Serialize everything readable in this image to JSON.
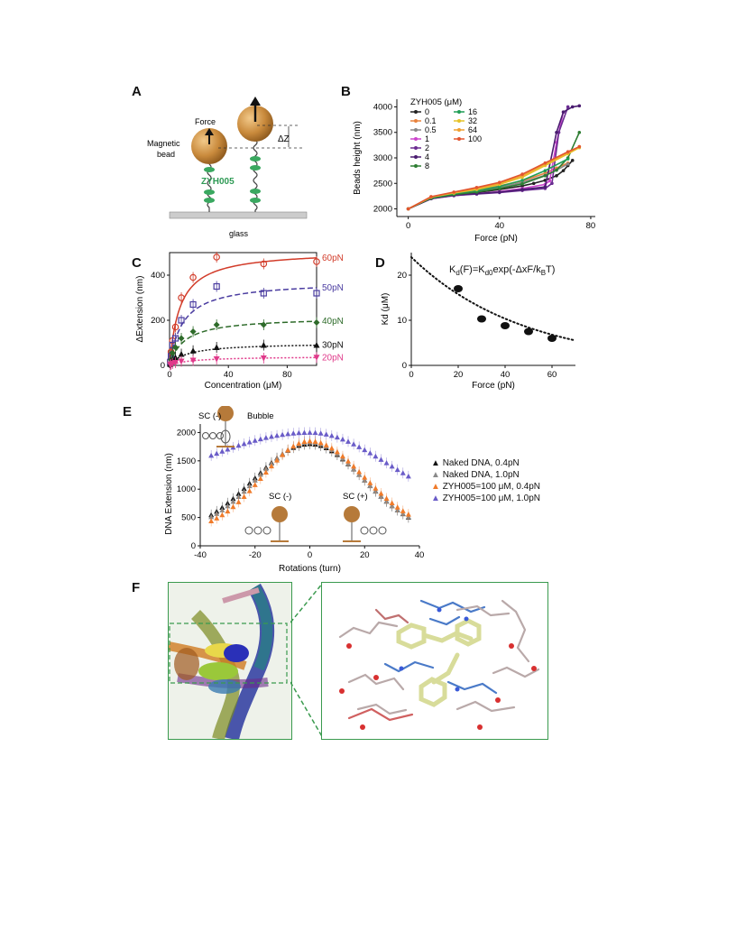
{
  "panels": {
    "A": {
      "letter": "A",
      "force_label": "Force",
      "bead_label_1": "Magnetic",
      "bead_label_2": "bead",
      "dz_label": "ΔZ",
      "compound_label": "ZYH005",
      "glass_label": "glass"
    },
    "B": {
      "letter": "B"
    },
    "C": {
      "letter": "C"
    },
    "D": {
      "letter": "D",
      "equation": "K_d(F)=K_d0 exp(-ΔxF/k_BT)"
    },
    "E": {
      "letter": "E",
      "sc_neg_top": "SC (-)",
      "bubble": "Bubble",
      "sc_neg": "SC (-)",
      "sc_pos": "SC (+)"
    },
    "F": {
      "letter": "F"
    }
  },
  "chart_data": [
    {
      "panel": "B",
      "type": "line",
      "xlabel": "Force (pN)",
      "ylabel": "Beads height (nm)",
      "xlim": [
        -5,
        82
      ],
      "ylim": [
        1850,
        4150
      ],
      "xticks": [
        "0",
        "40",
        "80"
      ],
      "yticks": [
        "2000",
        "2500",
        "3000",
        "3500",
        "4000"
      ],
      "legend_title": "ZYH005 (μM)",
      "legend_position": "top-left",
      "series": [
        {
          "name": "0",
          "color": "#222222",
          "x": [
            0,
            10,
            20,
            30,
            40,
            50,
            55,
            60,
            65,
            68,
            70,
            72
          ],
          "y": [
            2000,
            2200,
            2280,
            2320,
            2380,
            2450,
            2500,
            2560,
            2650,
            2750,
            2850,
            2950
          ]
        },
        {
          "name": "0.1",
          "color": "#e8823c",
          "x": [
            0,
            10,
            20,
            30,
            40,
            50,
            60,
            65,
            70
          ],
          "y": [
            2000,
            2220,
            2300,
            2360,
            2450,
            2550,
            2700,
            2800,
            2900
          ]
        },
        {
          "name": "0.5",
          "color": "#888888",
          "x": [
            0,
            10,
            20,
            30,
            40,
            50,
            60,
            65,
            70
          ],
          "y": [
            2000,
            2210,
            2290,
            2340,
            2420,
            2520,
            2660,
            2760,
            2880
          ]
        },
        {
          "name": "1",
          "color": "#cc44cc",
          "x": [
            0,
            10,
            20,
            30,
            40,
            50,
            60,
            62,
            65,
            68
          ],
          "y": [
            2000,
            2200,
            2260,
            2300,
            2340,
            2400,
            2480,
            2550,
            3300,
            3900
          ]
        },
        {
          "name": "2",
          "color": "#6a2c91",
          "x": [
            0,
            10,
            20,
            30,
            40,
            50,
            60,
            63,
            66,
            70
          ],
          "y": [
            2000,
            2200,
            2260,
            2290,
            2320,
            2360,
            2400,
            2500,
            3500,
            4000
          ]
        },
        {
          "name": "4",
          "color": "#4a1c70",
          "x": [
            0,
            10,
            20,
            30,
            40,
            50,
            60,
            65,
            68,
            72,
            75
          ],
          "y": [
            2000,
            2200,
            2270,
            2300,
            2330,
            2380,
            2430,
            3500,
            3900,
            4000,
            4020
          ]
        },
        {
          "name": "8",
          "color": "#2e7d32",
          "x": [
            0,
            10,
            20,
            30,
            40,
            50,
            60,
            65,
            70,
            75
          ],
          "y": [
            2000,
            2210,
            2280,
            2330,
            2400,
            2490,
            2650,
            2760,
            3000,
            3500
          ]
        },
        {
          "name": "16",
          "color": "#1f9d55",
          "x": [
            0,
            10,
            20,
            30,
            40,
            50,
            60,
            70
          ],
          "y": [
            2000,
            2220,
            2300,
            2360,
            2440,
            2560,
            2750,
            2980
          ]
        },
        {
          "name": "32",
          "color": "#e6c229",
          "x": [
            0,
            10,
            20,
            30,
            40,
            50,
            60,
            70,
            75
          ],
          "y": [
            2000,
            2230,
            2310,
            2380,
            2480,
            2620,
            2850,
            3080,
            3200
          ]
        },
        {
          "name": "64",
          "color": "#f0a030",
          "x": [
            0,
            10,
            20,
            30,
            40,
            50,
            60,
            70,
            75
          ],
          "y": [
            2000,
            2230,
            2320,
            2400,
            2500,
            2650,
            2880,
            3100,
            3220
          ]
        },
        {
          "name": "100",
          "color": "#e2552f",
          "x": [
            0,
            10,
            20,
            30,
            40,
            50,
            60,
            70,
            75
          ],
          "y": [
            2000,
            2240,
            2330,
            2420,
            2520,
            2680,
            2900,
            3120,
            3220
          ]
        }
      ]
    },
    {
      "panel": "C",
      "type": "scatter",
      "xlabel": "Concentration (μM)",
      "ylabel": "ΔExtension (nm)",
      "xlim": [
        0,
        100
      ],
      "ylim": [
        0,
        500
      ],
      "xticks": [
        "0",
        "40",
        "80"
      ],
      "yticks": [
        "0",
        "200",
        "400"
      ],
      "series": [
        {
          "name": "60pN",
          "color": "#d23c2a",
          "marker": "circle-open",
          "line": "solid",
          "x": [
            0.5,
            1,
            2,
            4,
            8,
            16,
            32,
            64,
            100
          ],
          "y": [
            20,
            60,
            110,
            170,
            300,
            390,
            480,
            450,
            460
          ],
          "fit": {
            "max": 510,
            "kd": 7
          }
        },
        {
          "name": "50pN",
          "color": "#4a3ca0",
          "marker": "square-open",
          "line": "dashed",
          "x": [
            0.5,
            1,
            2,
            4,
            8,
            16,
            32,
            64,
            100
          ],
          "y": [
            15,
            40,
            90,
            120,
            200,
            270,
            350,
            320,
            320
          ],
          "fit": {
            "max": 375,
            "kd": 9
          }
        },
        {
          "name": "40pN",
          "color": "#2e6b2a",
          "marker": "diamond",
          "line": "dashed",
          "x": [
            0.5,
            1,
            2,
            4,
            8,
            16,
            32,
            64,
            100
          ],
          "y": [
            10,
            25,
            55,
            80,
            120,
            150,
            180,
            180,
            190
          ],
          "fit": {
            "max": 215,
            "kd": 10
          }
        },
        {
          "name": "30pN",
          "color": "#111111",
          "marker": "triangle",
          "line": "dotted",
          "x": [
            0.5,
            1,
            2,
            4,
            8,
            16,
            32,
            64,
            100
          ],
          "y": [
            5,
            10,
            20,
            35,
            50,
            65,
            80,
            90,
            90
          ],
          "fit": {
            "max": 100,
            "kd": 12
          }
        },
        {
          "name": "20pN",
          "color": "#e0398a",
          "marker": "triangle-down",
          "line": "dotted",
          "x": [
            0.5,
            1,
            2,
            4,
            8,
            16,
            32,
            64,
            100
          ],
          "y": [
            2,
            5,
            8,
            12,
            18,
            22,
            28,
            32,
            35
          ],
          "fit": {
            "max": 40,
            "kd": 15
          }
        }
      ]
    },
    {
      "panel": "D",
      "type": "scatter",
      "xlabel": "Force (pN)",
      "ylabel": "Kd (μM)",
      "xlim": [
        0,
        70
      ],
      "ylim": [
        0,
        25
      ],
      "xticks": [
        "0",
        "20",
        "40",
        "60"
      ],
      "yticks": [
        "0",
        "10",
        "20"
      ],
      "points": {
        "x": [
          20,
          30,
          40,
          50,
          60
        ],
        "y": [
          17,
          10.3,
          8.8,
          7.5,
          6
        ]
      },
      "fit": {
        "kd0": 24,
        "decay": 0.021
      }
    },
    {
      "panel": "E",
      "type": "scatter",
      "xlabel": "Rotations (turn)",
      "ylabel": "DNA Extension (nm)",
      "xlim": [
        -40,
        40
      ],
      "ylim": [
        0,
        2150
      ],
      "xticks": [
        "-40",
        "-20",
        "0",
        "20",
        "40"
      ],
      "yticks": [
        "0",
        "500",
        "1000",
        "1500",
        "2000"
      ],
      "legend_position": "right",
      "series": [
        {
          "name": "Naked DNA, 0.4pN",
          "color": "#111111",
          "marker": "triangle",
          "peak": 1800,
          "left_width": 26,
          "right_width": 25,
          "floor": 200
        },
        {
          "name": "Naked DNA, 1.0pN",
          "color": "#8a8a8a",
          "marker": "triangle",
          "peak": 1830,
          "left_width": 24,
          "right_width": 24,
          "floor": 250
        },
        {
          "name": "ZYH005=100 μM, 0.4pN",
          "color": "#f07b2a",
          "marker": "triangle",
          "peak": 1850,
          "left_width": 22,
          "right_width": 25,
          "floor": 250
        },
        {
          "name": "ZYH005=100 μM, 1.0pN",
          "color": "#6a5cc8",
          "marker": "triangle",
          "peak": 2000,
          "left_width": 55,
          "right_width": 36,
          "floor": 600
        }
      ]
    }
  ]
}
